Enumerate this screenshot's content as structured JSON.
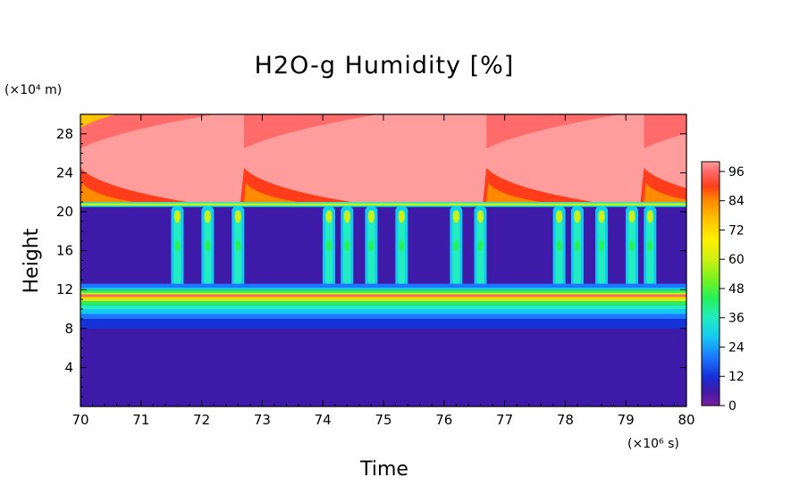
{
  "chart_data": {
    "type": "heatmap",
    "title": "H2O-g Humidity [%]",
    "xlabel": "Time",
    "ylabel": "Height",
    "x_unit": "(×10⁶ s)",
    "y_unit": "(×10⁴ m)",
    "xlim": [
      70,
      80
    ],
    "ylim": [
      0,
      30
    ],
    "x_ticks": [
      "70",
      "71",
      "72",
      "73",
      "74",
      "75",
      "76",
      "77",
      "78",
      "79",
      "80"
    ],
    "y_ticks": [
      "4",
      "8",
      "12",
      "16",
      "20",
      "24",
      "28"
    ],
    "colorbar": {
      "min": 0,
      "max": 100,
      "tick_labels": [
        "0",
        "12",
        "24",
        "36",
        "48",
        "60",
        "72",
        "84",
        "96"
      ]
    },
    "layers": [
      {
        "height_range": [
          0,
          8
        ],
        "humidity": 0,
        "desc": "dry lower layer"
      },
      {
        "height_range": [
          8,
          10
        ],
        "humidity": [
          4,
          20
        ],
        "desc": "increasing moisture"
      },
      {
        "height_range": [
          10,
          12
        ],
        "humidity": [
          30,
          90
        ],
        "desc": "moist band with peak near 11.4"
      },
      {
        "height_range": [
          12,
          20.5
        ],
        "humidity": [
          0,
          55
        ],
        "desc": "dry layer with periodic convective plumes"
      },
      {
        "height_range": [
          20.5,
          21
        ],
        "humidity": 50,
        "desc": "thin moist line"
      },
      {
        "height_range": [
          21,
          30
        ],
        "humidity": [
          85,
          100
        ],
        "desc": "near-saturated upper layer with saturation bursts"
      }
    ],
    "plume_times": [
      71.6,
      72.1,
      72.6,
      74.1,
      74.4,
      74.8,
      75.3,
      76.2,
      76.6,
      77.9,
      78.2,
      78.6,
      79.1,
      79.4
    ],
    "burst_times": [
      70.0,
      72.7,
      76.7,
      79.3
    ]
  }
}
